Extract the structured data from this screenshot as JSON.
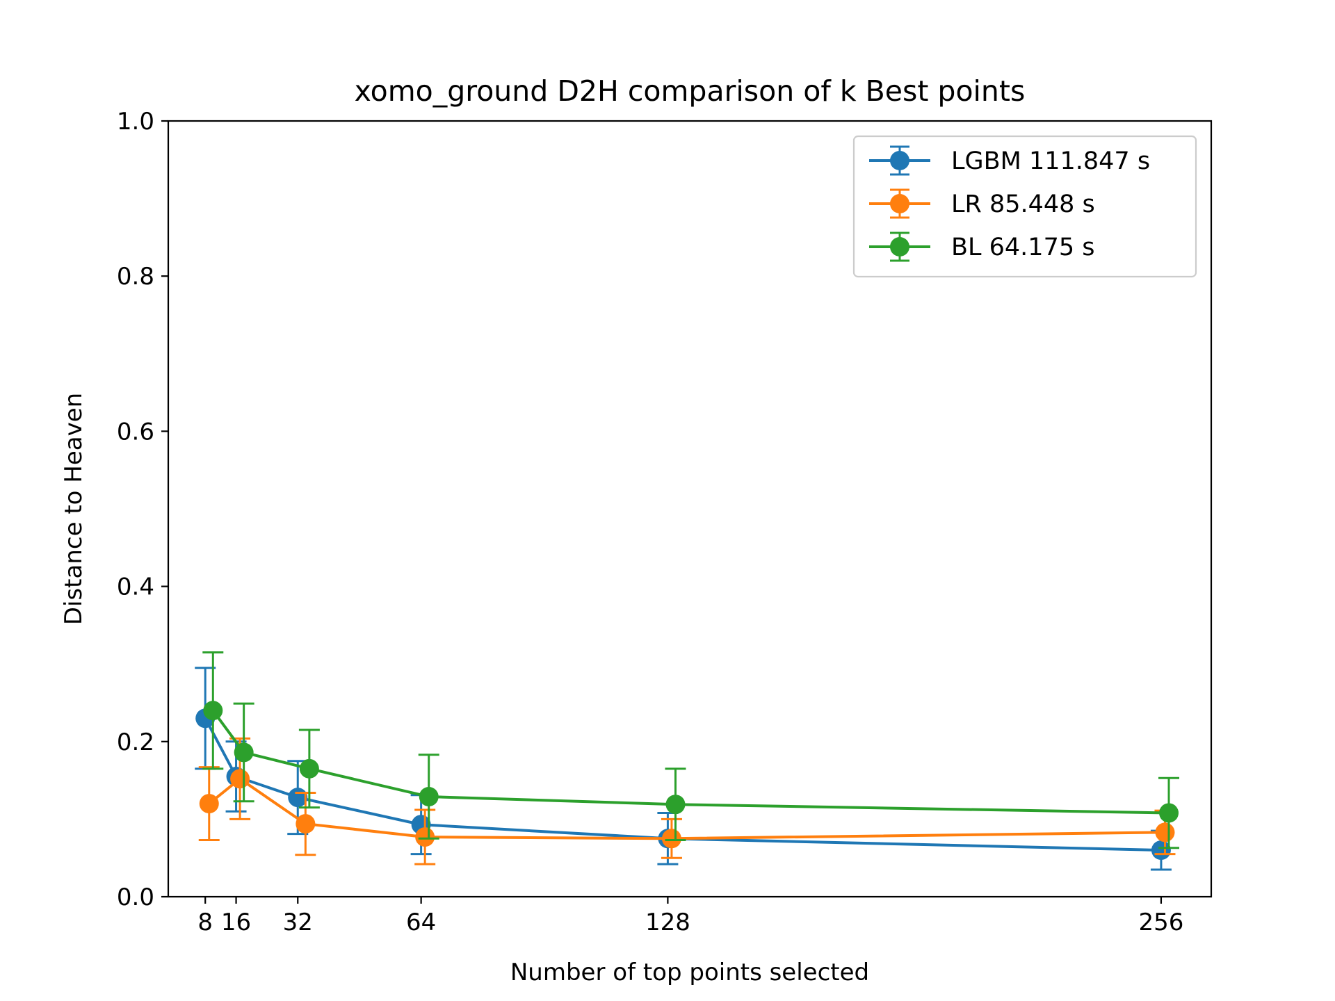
{
  "chart_data": {
    "type": "line",
    "title": "xomo_ground D2H comparison of k Best points",
    "xlabel": "Number of top points selected",
    "ylabel": "Distance to Heaven",
    "x_ticks": [
      8,
      16,
      32,
      64,
      128,
      256
    ],
    "x_tick_labels": [
      "8",
      "16",
      "32",
      "64",
      "128",
      "256"
    ],
    "xlim": [
      -1.6,
      269
    ],
    "ylim": [
      0,
      1.0
    ],
    "y_ticks": [
      0.0,
      0.2,
      0.4,
      0.6,
      0.8,
      1.0
    ],
    "y_tick_labels": [
      "0.0",
      "0.2",
      "0.4",
      "0.6",
      "0.8",
      "1.0"
    ],
    "grid": false,
    "legend_position": "top-right",
    "error_bars": true,
    "series": [
      {
        "name": "LGBM 111.847 s",
        "color": "#1f77b4",
        "x": [
          8,
          16,
          32,
          64,
          128,
          256
        ],
        "y": [
          0.23,
          0.155,
          0.128,
          0.093,
          0.075,
          0.06
        ],
        "err": [
          0.065,
          0.045,
          0.047,
          0.038,
          0.033,
          0.025
        ]
      },
      {
        "name": "LR 85.448 s",
        "color": "#ff7f0e",
        "x": [
          9,
          17,
          34,
          65,
          129,
          257
        ],
        "y": [
          0.12,
          0.152,
          0.094,
          0.077,
          0.075,
          0.083
        ],
        "err": [
          0.047,
          0.052,
          0.04,
          0.035,
          0.025,
          0.028
        ]
      },
      {
        "name": "BL 64.175 s",
        "color": "#2ca02c",
        "x": [
          10,
          18,
          35,
          66,
          130,
          258
        ],
        "y": [
          0.24,
          0.186,
          0.165,
          0.129,
          0.119,
          0.108
        ],
        "err": [
          0.075,
          0.063,
          0.05,
          0.054,
          0.046,
          0.045
        ]
      }
    ]
  }
}
